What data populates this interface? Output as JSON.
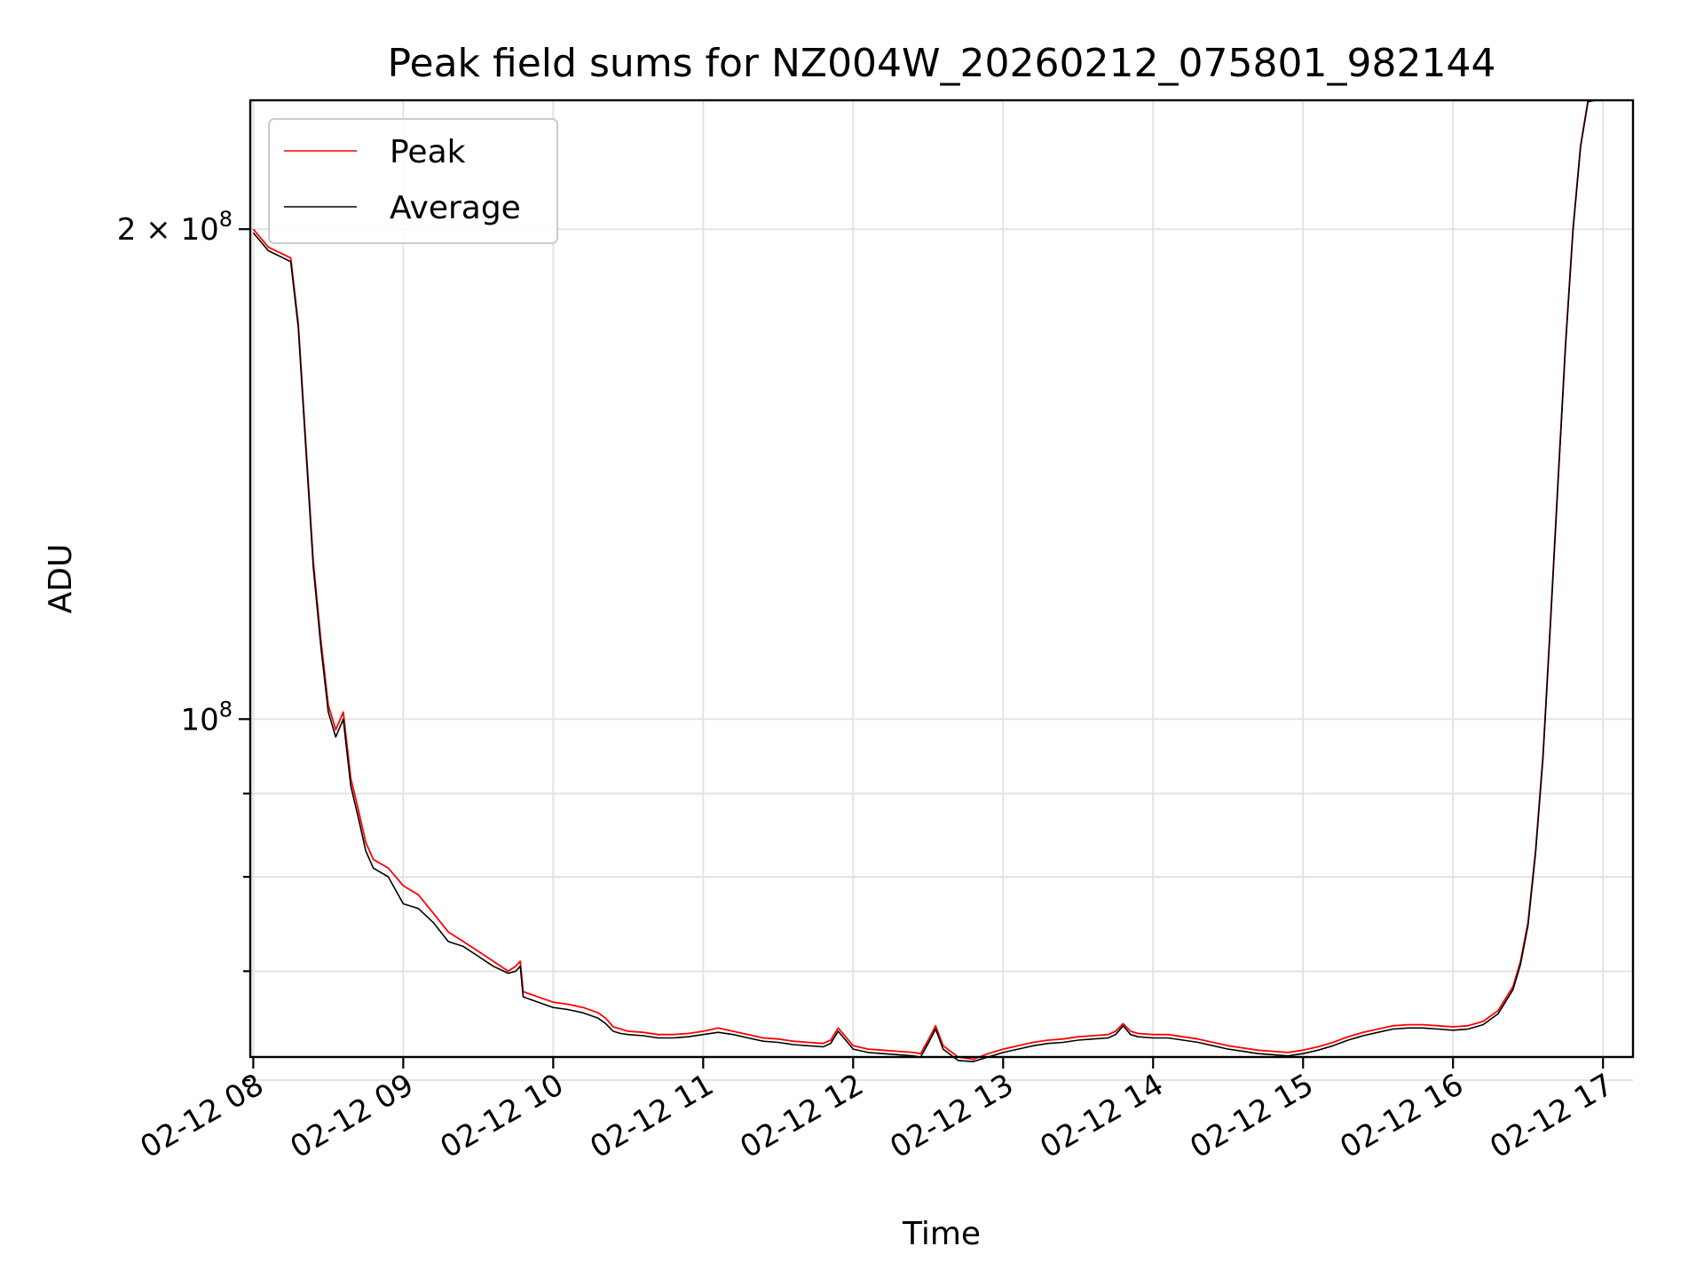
{
  "chart_data": {
    "type": "line",
    "title": "Peak field sums for NZ004W_20260212_075801_982144",
    "xlabel": "Time",
    "ylabel": "ADU",
    "yscale": "log",
    "xlim": [
      7.98,
      17.2
    ],
    "ylim": [
      62000000,
      240000000
    ],
    "grid": true,
    "legend_position": "upper-left",
    "x_unit": "hours on 2026-02-12",
    "x_ticks": [
      8,
      9,
      10,
      11,
      12,
      13,
      14,
      15,
      16,
      17
    ],
    "x_tick_labels": [
      "02-12 08",
      "02-12 09",
      "02-12 10",
      "02-12 11",
      "02-12 12",
      "02-12 13",
      "02-12 14",
      "02-12 15",
      "02-12 16",
      "02-12 17"
    ],
    "y_major_ticks": [
      100000000,
      200000000
    ],
    "y_major_tick_labels": [
      {
        "mantissa": "",
        "exponent": "8",
        "prefix": "10"
      },
      {
        "mantissa": "2 × ",
        "exponent": "8",
        "prefix": "10"
      }
    ],
    "y_minor_ticks": [
      60000000,
      70000000,
      80000000,
      90000000
    ],
    "series": [
      {
        "name": "Peak",
        "color": "#ff0000",
        "x": [
          8.0,
          8.1,
          8.2,
          8.25,
          8.3,
          8.35,
          8.4,
          8.45,
          8.5,
          8.55,
          8.6,
          8.65,
          8.7,
          8.75,
          8.8,
          8.9,
          9.0,
          9.1,
          9.2,
          9.3,
          9.4,
          9.5,
          9.6,
          9.7,
          9.75,
          9.78,
          9.8,
          9.9,
          10.0,
          10.1,
          10.2,
          10.3,
          10.35,
          10.4,
          10.45,
          10.5,
          10.6,
          10.7,
          10.8,
          10.9,
          11.0,
          11.1,
          11.2,
          11.3,
          11.4,
          11.5,
          11.6,
          11.7,
          11.8,
          11.85,
          11.9,
          11.95,
          12.0,
          12.1,
          12.2,
          12.3,
          12.4,
          12.45,
          12.5,
          12.55,
          12.6,
          12.7,
          12.8,
          12.9,
          13.0,
          13.1,
          13.2,
          13.3,
          13.4,
          13.5,
          13.6,
          13.7,
          13.75,
          13.8,
          13.85,
          13.9,
          14.0,
          14.1,
          14.2,
          14.3,
          14.4,
          14.5,
          14.6,
          14.7,
          14.8,
          14.9,
          15.0,
          15.1,
          15.2,
          15.3,
          15.4,
          15.5,
          15.6,
          15.7,
          15.8,
          15.9,
          16.0,
          16.1,
          16.2,
          16.3,
          16.4,
          16.45,
          16.5,
          16.55,
          16.6,
          16.65,
          16.7,
          16.75,
          16.8,
          16.85,
          16.9,
          16.95,
          17.0
        ],
        "y": [
          200000000,
          195000000,
          193000000,
          192000000,
          175000000,
          148000000,
          125000000,
          112000000,
          102000000,
          98500000,
          101000000,
          92000000,
          88000000,
          84000000,
          82000000,
          81000000,
          79000000,
          78000000,
          76000000,
          74000000,
          73000000,
          72000000,
          71000000,
          70000000,
          70500000,
          71000000,
          68000000,
          67500000,
          67000000,
          66800000,
          66500000,
          66000000,
          65500000,
          64700000,
          64500000,
          64300000,
          64200000,
          64000000,
          64000000,
          64100000,
          64300000,
          64600000,
          64300000,
          64000000,
          63700000,
          63600000,
          63400000,
          63300000,
          63200000,
          63500000,
          64600000,
          63800000,
          63000000,
          62700000,
          62600000,
          62500000,
          62400000,
          62300000,
          63500000,
          64800000,
          63000000,
          62000000,
          61800000,
          62300000,
          62700000,
          63000000,
          63300000,
          63500000,
          63600000,
          63800000,
          63900000,
          64000000,
          64300000,
          65000000,
          64300000,
          64100000,
          64000000,
          64000000,
          63800000,
          63600000,
          63300000,
          63000000,
          62800000,
          62600000,
          62500000,
          62400000,
          62600000,
          62900000,
          63300000,
          63800000,
          64200000,
          64500000,
          64800000,
          64900000,
          64900000,
          64800000,
          64700000,
          64800000,
          65200000,
          66200000,
          68500000,
          71000000,
          75000000,
          83000000,
          95000000,
          115000000,
          140000000,
          170000000,
          200000000,
          225000000,
          240000000,
          240000000,
          240000000
        ]
      },
      {
        "name": "Average",
        "color": "#000000",
        "x": [
          8.0,
          8.1,
          8.2,
          8.25,
          8.3,
          8.35,
          8.4,
          8.45,
          8.5,
          8.55,
          8.6,
          8.65,
          8.7,
          8.75,
          8.8,
          8.9,
          9.0,
          9.1,
          9.2,
          9.3,
          9.4,
          9.5,
          9.6,
          9.7,
          9.75,
          9.78,
          9.8,
          9.9,
          10.0,
          10.1,
          10.2,
          10.3,
          10.35,
          10.4,
          10.45,
          10.5,
          10.6,
          10.7,
          10.8,
          10.9,
          11.0,
          11.1,
          11.2,
          11.3,
          11.4,
          11.5,
          11.6,
          11.7,
          11.8,
          11.85,
          11.9,
          11.95,
          12.0,
          12.1,
          12.2,
          12.3,
          12.4,
          12.45,
          12.5,
          12.55,
          12.6,
          12.7,
          12.8,
          12.9,
          13.0,
          13.1,
          13.2,
          13.3,
          13.4,
          13.5,
          13.6,
          13.7,
          13.75,
          13.8,
          13.85,
          13.9,
          14.0,
          14.1,
          14.2,
          14.3,
          14.4,
          14.5,
          14.6,
          14.7,
          14.8,
          14.9,
          15.0,
          15.1,
          15.2,
          15.3,
          15.4,
          15.5,
          15.6,
          15.7,
          15.8,
          15.9,
          16.0,
          16.1,
          16.2,
          16.3,
          16.4,
          16.45,
          16.5,
          16.55,
          16.6,
          16.65,
          16.7,
          16.75,
          16.8,
          16.85,
          16.9,
          16.95,
          17.0
        ],
        "y": [
          199000000,
          194000000,
          192000000,
          191000000,
          174000000,
          147000000,
          124000000,
          111000000,
          101000000,
          97500000,
          100000000,
          91000000,
          87000000,
          83000000,
          81000000,
          80000000,
          77000000,
          76500000,
          75000000,
          73000000,
          72500000,
          71500000,
          70500000,
          69800000,
          70000000,
          70500000,
          67500000,
          67000000,
          66500000,
          66300000,
          66000000,
          65500000,
          65000000,
          64300000,
          64100000,
          64000000,
          63900000,
          63700000,
          63700000,
          63800000,
          64000000,
          64200000,
          64000000,
          63700000,
          63400000,
          63300000,
          63100000,
          63000000,
          62900000,
          63200000,
          64300000,
          63500000,
          62700000,
          62400000,
          62300000,
          62200000,
          62100000,
          62000000,
          63200000,
          64500000,
          62700000,
          61700000,
          61600000,
          62000000,
          62400000,
          62700000,
          63000000,
          63200000,
          63300000,
          63500000,
          63600000,
          63700000,
          64000000,
          64800000,
          64000000,
          63800000,
          63700000,
          63700000,
          63500000,
          63300000,
          63000000,
          62700000,
          62500000,
          62300000,
          62200000,
          62100000,
          62300000,
          62600000,
          63000000,
          63500000,
          63900000,
          64200000,
          64500000,
          64600000,
          64600000,
          64500000,
          64400000,
          64500000,
          64900000,
          65900000,
          68200000,
          70700000,
          74700000,
          82700000,
          94700000,
          114700000,
          139700000,
          169700000,
          199700000,
          224700000,
          239500000,
          240000000,
          240000000
        ]
      }
    ]
  }
}
